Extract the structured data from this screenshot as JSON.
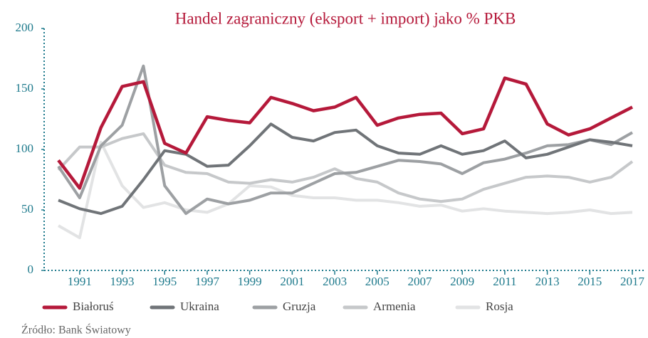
{
  "chart_data": {
    "type": "line",
    "title": "Handel zagraniczny (eksport + import) jako % PKB",
    "source": "Źródło: Bank Światowy",
    "x": [
      1990,
      1991,
      1992,
      1993,
      1994,
      1995,
      1996,
      1997,
      1998,
      1999,
      2000,
      2001,
      2002,
      2003,
      2004,
      2005,
      2006,
      2007,
      2008,
      2009,
      2010,
      2011,
      2012,
      2013,
      2014,
      2015,
      2016,
      2017
    ],
    "xlim": [
      1990,
      2017
    ],
    "xticks": [
      1991,
      1993,
      1995,
      1997,
      1999,
      2001,
      2003,
      2005,
      2007,
      2009,
      2011,
      2013,
      2015,
      2017
    ],
    "ylim": [
      0,
      200
    ],
    "yticks": [
      0,
      50,
      100,
      150,
      200
    ],
    "grid": false,
    "series": [
      {
        "name": "Białoruś",
        "color": "#b5193a",
        "values": [
          91,
          68,
          118,
          152,
          156,
          105,
          97,
          127,
          124,
          122,
          143,
          138,
          132,
          135,
          143,
          120,
          126,
          129,
          130,
          113,
          117,
          159,
          154,
          121,
          112,
          117,
          126,
          135
        ]
      },
      {
        "name": "Ukraina",
        "color": "#707478",
        "values": [
          58,
          51,
          47,
          53,
          75,
          99,
          96,
          86,
          87,
          103,
          121,
          110,
          107,
          114,
          116,
          103,
          97,
          96,
          103,
          96,
          99,
          107,
          93,
          96,
          102,
          108,
          106,
          103
        ]
      },
      {
        "name": "Gruzja",
        "color": "#9da0a3",
        "values": [
          86,
          60,
          103,
          120,
          169,
          70,
          47,
          59,
          55,
          58,
          64,
          64,
          72,
          80,
          81,
          86,
          91,
          90,
          88,
          80,
          89,
          92,
          97,
          103,
          104,
          108,
          104,
          114
        ]
      },
      {
        "name": "Armenia",
        "color": "#c6c8ca",
        "values": [
          83,
          102,
          102,
          109,
          113,
          87,
          81,
          80,
          73,
          72,
          75,
          73,
          77,
          84,
          76,
          73,
          64,
          59,
          57,
          59,
          67,
          72,
          77,
          78,
          77,
          73,
          77,
          90
        ]
      },
      {
        "name": "Rosja",
        "color": "#e2e3e4",
        "values": [
          37,
          27,
          106,
          70,
          52,
          56,
          50,
          48,
          55,
          70,
          69,
          62,
          60,
          60,
          58,
          58,
          56,
          53,
          54,
          49,
          51,
          49,
          48,
          47,
          48,
          50,
          47,
          48
        ]
      }
    ]
  }
}
